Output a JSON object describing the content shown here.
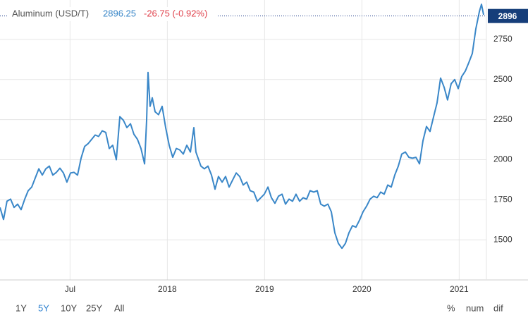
{
  "chart_data": {
    "type": "line",
    "title": "Aluminum (USD/T)",
    "price": 2896.25,
    "change": "-26.75 (-0.92%)",
    "price_tag": "2896",
    "color": "#3a87c8",
    "grid": true,
    "x": [
      2016.78,
      2016.816,
      2016.852,
      2016.889,
      2016.925,
      2016.961,
      2016.997,
      2017.034,
      2017.07,
      2017.106,
      2017.142,
      2017.179,
      2017.215,
      2017.251,
      2017.287,
      2017.323,
      2017.36,
      2017.396,
      2017.432,
      2017.468,
      2017.505,
      2017.541,
      2017.577,
      2017.613,
      2017.65,
      2017.686,
      2017.722,
      2017.758,
      2017.794,
      2017.831,
      2017.867,
      2017.903,
      2017.939,
      2017.976,
      2018.012,
      2018.048,
      2018.084,
      2018.121,
      2018.157,
      2018.193,
      2018.229,
      2018.266,
      2018.287,
      2018.302,
      2018.323,
      2018.345,
      2018.374,
      2018.41,
      2018.447,
      2018.483,
      2018.519,
      2018.555,
      2018.592,
      2018.628,
      2018.664,
      2018.7,
      2018.737,
      2018.773,
      2018.794,
      2018.845,
      2018.881,
      2018.918,
      2018.954,
      2018.99,
      2019.026,
      2019.063,
      2019.099,
      2019.135,
      2019.171,
      2019.208,
      2019.244,
      2019.28,
      2019.316,
      2019.352,
      2019.389,
      2019.425,
      2019.461,
      2019.497,
      2019.534,
      2019.57,
      2019.606,
      2019.642,
      2019.679,
      2019.715,
      2019.751,
      2019.787,
      2019.823,
      2019.86,
      2019.896,
      2019.932,
      2019.968,
      2020.005,
      2020.041,
      2020.077,
      2020.113,
      2020.15,
      2020.186,
      2020.222,
      2020.258,
      2020.295,
      2020.331,
      2020.367,
      2020.403,
      2020.439,
      2020.476,
      2020.512,
      2020.548,
      2020.584,
      2020.621,
      2020.657,
      2020.693,
      2020.729,
      2020.766,
      2020.802,
      2020.838,
      2020.874,
      2020.91,
      2020.947,
      2020.983,
      2021.019,
      2021.055,
      2021.092,
      2021.128,
      2021.164,
      2021.2,
      2021.237,
      2021.273,
      2021.309,
      2021.345,
      2021.381,
      2021.418,
      2021.454,
      2021.49,
      2021.526,
      2021.563,
      2021.599,
      2021.635,
      2021.671,
      2021.708,
      2021.729,
      2021.751
    ],
    "values": [
      1702,
      1627,
      1741,
      1754,
      1702,
      1723,
      1688,
      1754,
      1807,
      1829,
      1886,
      1943,
      1904,
      1943,
      1960,
      1904,
      1921,
      1947,
      1917,
      1860,
      1917,
      1921,
      1904,
      2009,
      2083,
      2100,
      2127,
      2154,
      2145,
      2180,
      2170,
      2070,
      2090,
      2000,
      2268,
      2246,
      2200,
      2224,
      2158,
      2127,
      2070,
      1974,
      2246,
      2544,
      2333,
      2386,
      2299,
      2281,
      2333,
      2200,
      2090,
      2015,
      2070,
      2061,
      2035,
      2090,
      2048,
      2200,
      2048,
      1960,
      1943,
      1960,
      1904,
      1816,
      1895,
      1860,
      1895,
      1829,
      1873,
      1917,
      1895,
      1842,
      1860,
      1807,
      1798,
      1741,
      1763,
      1785,
      1829,
      1763,
      1728,
      1772,
      1785,
      1723,
      1754,
      1741,
      1785,
      1741,
      1763,
      1754,
      1807,
      1798,
      1807,
      1723,
      1710,
      1723,
      1675,
      1544,
      1478,
      1447,
      1478,
      1544,
      1588,
      1579,
      1623,
      1675,
      1710,
      1754,
      1772,
      1763,
      1798,
      1785,
      1842,
      1829,
      1904,
      1960,
      2035,
      2048,
      2015,
      2009,
      2015,
      1974,
      2118,
      2207,
      2176,
      2268,
      2355,
      2509,
      2452,
      2373,
      2474,
      2500,
      2443,
      2518,
      2553,
      2605,
      2662,
      2816,
      2925,
      2969,
      2904
    ],
    "xlim": [
      2016.78,
      2021.78
    ],
    "xticks": [
      {
        "value": 2017.5,
        "label": "Jul"
      },
      {
        "value": 2018.5,
        "label": "2018"
      },
      {
        "value": 2019.5,
        "label": "2019"
      },
      {
        "value": 2020.5,
        "label": "2020"
      },
      {
        "value": 2021.5,
        "label": "2021"
      }
    ],
    "ylim": [
      1250,
      2996
    ],
    "yticks": [
      1500,
      1750,
      2000,
      2250,
      2500,
      2750
    ],
    "ranges": [
      "1Y",
      "5Y",
      "10Y",
      "25Y",
      "All"
    ],
    "selected_range": 1,
    "modes": [
      "%",
      "num",
      "dif"
    ]
  }
}
